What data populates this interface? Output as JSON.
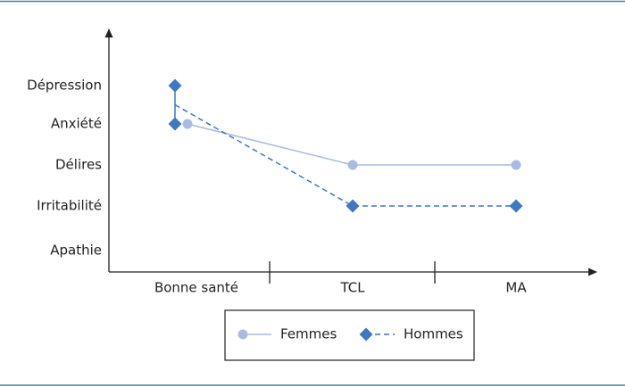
{
  "chart_data": {
    "type": "line",
    "y_categories": [
      "Dépression",
      "Anxiété",
      "Délires",
      "Irritabilité",
      "Apathie"
    ],
    "categories": [
      "Bonne santé",
      "TCL",
      "MA"
    ],
    "series": [
      {
        "name": "Femmes",
        "color": "#a9bbe0",
        "line_style": "solid",
        "marker": "circle",
        "values": [
          "Anxiété",
          "Délires",
          "Délires"
        ]
      },
      {
        "name": "Hommes",
        "color": "#3f78c0",
        "line_style": "dashed",
        "marker": "diamond",
        "values": [
          [
            "Dépression",
            "Anxiété"
          ],
          "Irritabilité",
          "Irritabilité"
        ]
      }
    ]
  }
}
